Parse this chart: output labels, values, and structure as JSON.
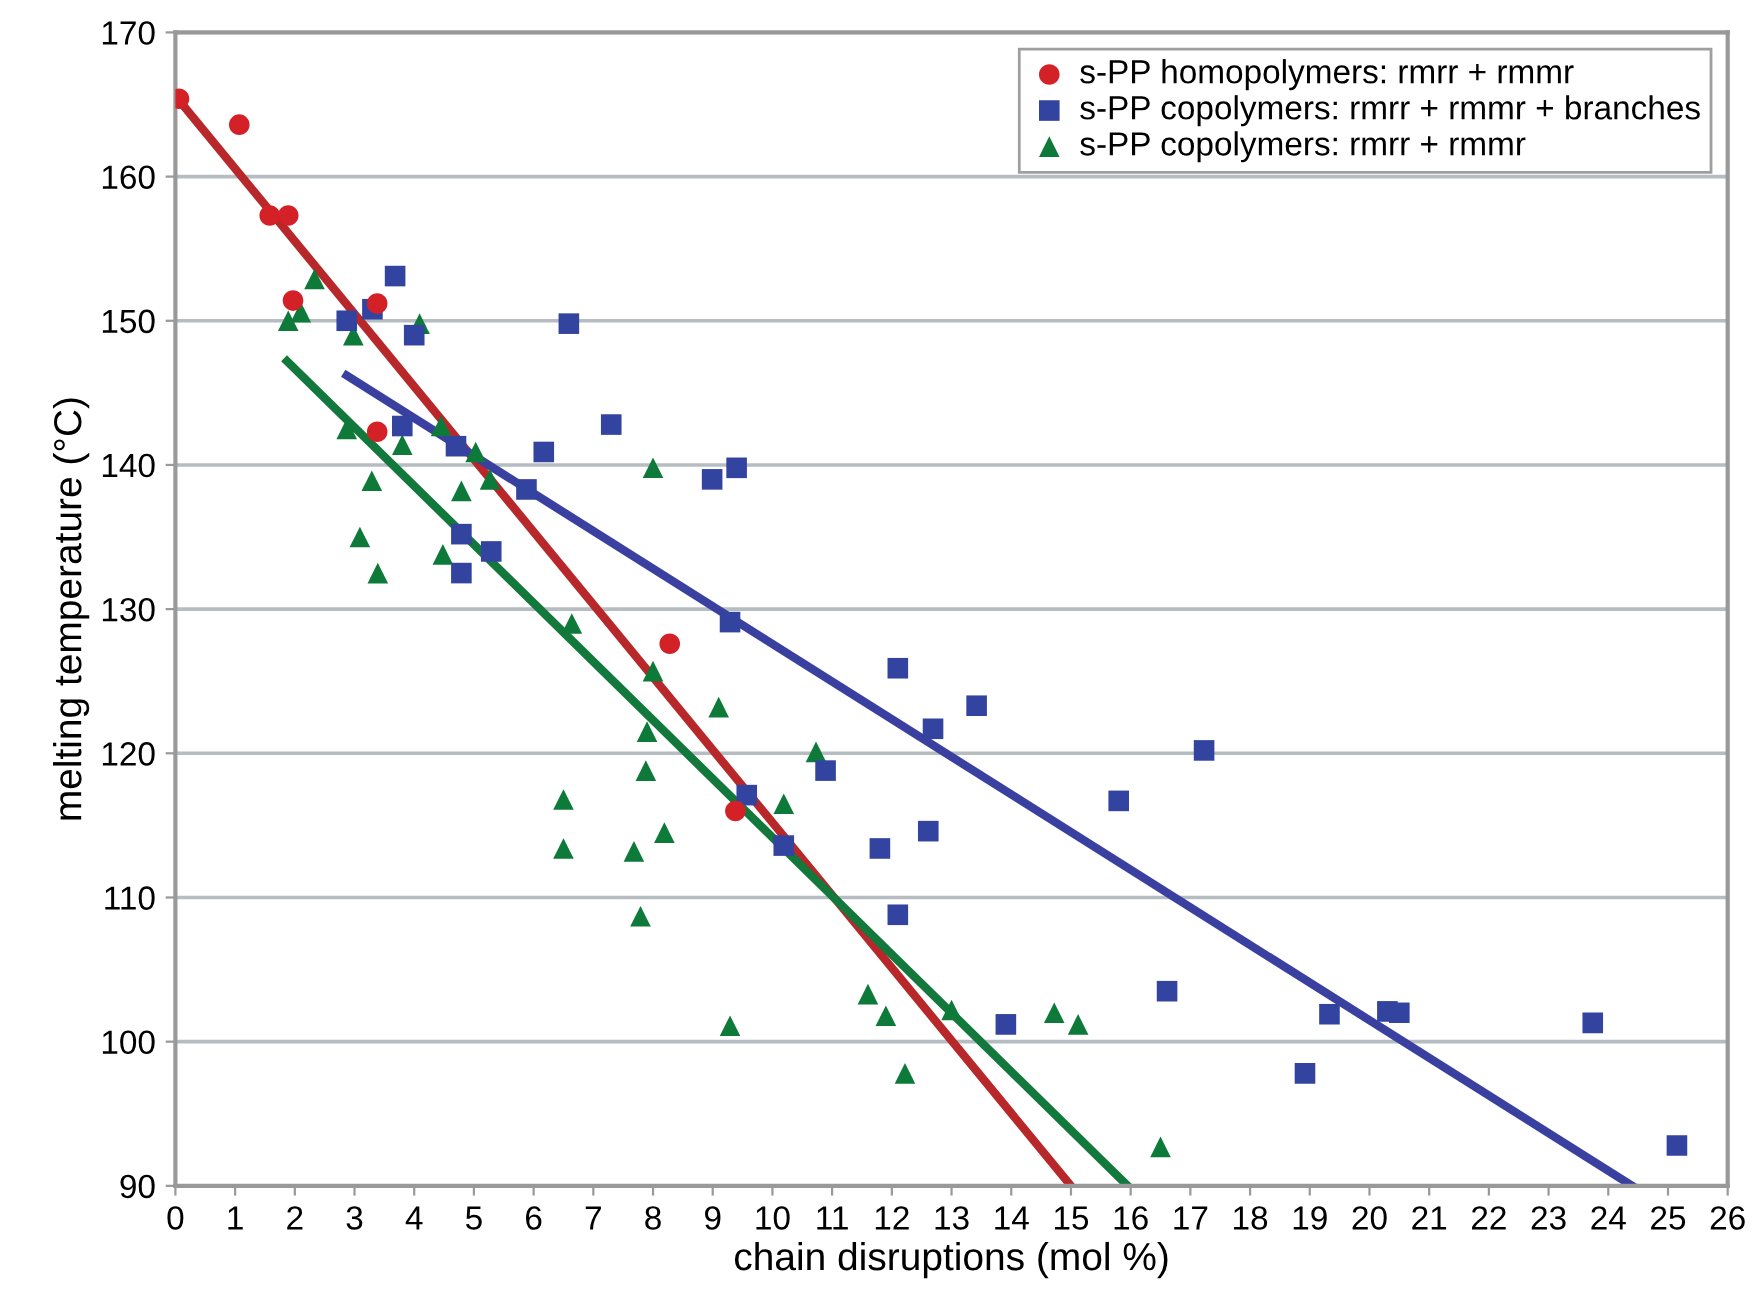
{
  "chart_data": {
    "type": "scatter",
    "xlabel": "chain disruptions (mol %)",
    "ylabel": "melting temperature (°C)",
    "xlim": [
      0,
      26
    ],
    "xticks": [
      0,
      1,
      2,
      3,
      4,
      5,
      6,
      7,
      8,
      9,
      10,
      11,
      12,
      13,
      14,
      15,
      16,
      17,
      18,
      19,
      20,
      21,
      22,
      23,
      24,
      25,
      26
    ],
    "ylim": [
      90,
      170
    ],
    "yticks": [
      90,
      100,
      110,
      120,
      130,
      140,
      150,
      160,
      170
    ],
    "grid": "y",
    "legend": "top right",
    "series": [
      {
        "name": "s-PP homopolymers: rmrr + rmmr",
        "color": "#d42027",
        "marker": "circle",
        "x": [
          0.06,
          1.07,
          1.58,
          1.89,
          1.97,
          3.38,
          3.38,
          8.28,
          9.38
        ],
        "values": [
          165.4,
          163.6,
          157.3,
          157.3,
          151.4,
          151.2,
          142.3,
          127.6,
          116.0
        ]
      },
      {
        "name": "s-PP copolymers: rmrr + rmmr + branches",
        "color": "#3343a0",
        "marker": "square",
        "x": [
          3.68,
          2.87,
          3.3,
          4.0,
          6.59,
          3.8,
          4.7,
          5.88,
          6.17,
          7.3,
          8.99,
          9.4,
          4.79,
          5.29,
          4.79,
          9.29,
          12.1,
          12.69,
          13.42,
          10.89,
          11.8,
          12.61,
          12.1,
          13.91,
          15.8,
          17.23,
          16.61,
          19.33,
          18.92,
          9.57,
          10.19,
          20.3,
          20.5,
          23.74,
          25.15
        ],
        "values": [
          153.1,
          150.0,
          150.8,
          149.0,
          149.8,
          142.7,
          141.3,
          138.3,
          140.9,
          142.8,
          139.0,
          139.8,
          135.2,
          134.0,
          132.5,
          129.1,
          125.9,
          121.7,
          123.3,
          118.8,
          113.4,
          114.6,
          108.8,
          101.2,
          116.7,
          120.2,
          103.5,
          101.9,
          97.8,
          117.1,
          113.6,
          102.1,
          102.0,
          101.3,
          92.8
        ]
      },
      {
        "name": "s-PP copolymers: rmrr + rmmr",
        "color": "#0e7a3a",
        "marker": "triangle",
        "x": [
          2.33,
          1.89,
          2.1,
          2.98,
          4.09,
          2.87,
          3.8,
          3.29,
          4.79,
          3.09,
          3.39,
          4.48,
          5.03,
          5.27,
          8.0,
          4.45,
          6.64,
          8.0,
          9.1,
          7.9,
          7.88,
          8.19,
          6.5,
          6.5,
          7.68,
          7.79,
          9.29,
          10.73,
          10.19,
          11.6,
          11.9,
          12.22,
          13.0,
          14.72,
          15.12,
          16.5
        ],
        "values": [
          152.9,
          150.0,
          150.6,
          149.0,
          149.8,
          142.5,
          141.4,
          138.9,
          138.2,
          135.0,
          132.5,
          133.8,
          140.9,
          139.0,
          139.8,
          142.7,
          129.0,
          125.7,
          123.2,
          121.5,
          118.8,
          114.5,
          116.8,
          113.4,
          113.2,
          108.7,
          101.1,
          120.1,
          116.5,
          103.3,
          101.8,
          97.8,
          102.2,
          102.0,
          101.2,
          92.7
        ]
      },
      {
        "type": "line",
        "color": "#b8282a",
        "x": [
          0,
          15.0
        ],
        "values": [
          165.6,
          90
        ]
      },
      {
        "type": "line",
        "color": "#3a40a0",
        "x": [
          2.87,
          24.4
        ],
        "values": [
          146.2,
          90
        ]
      },
      {
        "type": "line",
        "color": "#13783b",
        "x": [
          1.87,
          15.95
        ],
        "values": [
          147.2,
          90
        ]
      }
    ]
  }
}
